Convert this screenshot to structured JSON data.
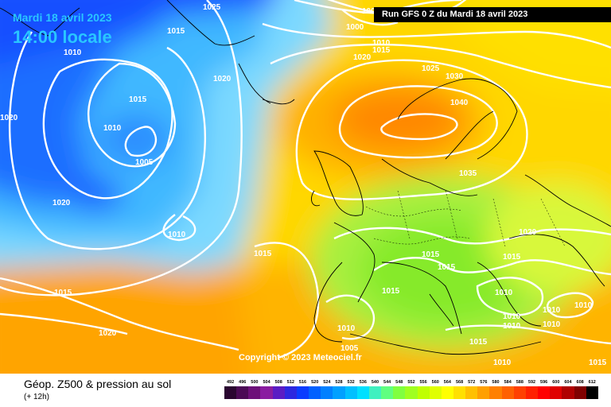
{
  "header": {
    "date": "Mardi 18 avril 2023",
    "local_time": "14:00 locale",
    "run_info": "Run GFS 0 Z du Mardi 18 avril 2023"
  },
  "copyright": "Copyright © 2023 Meteociel.fr",
  "legend": {
    "title": "Géop. Z500 & pression au sol",
    "subtitle": "(+ 12h)",
    "scale_values": [
      "492",
      "496",
      "500",
      "504",
      "508",
      "512",
      "516",
      "520",
      "524",
      "528",
      "532",
      "536",
      "540",
      "544",
      "548",
      "552",
      "556",
      "560",
      "564",
      "568",
      "572",
      "576",
      "580",
      "584",
      "588",
      "592",
      "596",
      "600",
      "604",
      "608",
      "612"
    ],
    "scale_colors": [
      "#2a0630",
      "#4b0a55",
      "#6d1079",
      "#8a1ca0",
      "#5a1cc4",
      "#2c28e0",
      "#0a3cff",
      "#0060ff",
      "#0080ff",
      "#00a0ff",
      "#00c0ff",
      "#00e0ff",
      "#40f0c0",
      "#60ff80",
      "#80ff40",
      "#a0ff20",
      "#c0ff00",
      "#e0ff00",
      "#ffff00",
      "#ffe000",
      "#ffc000",
      "#ffa000",
      "#ff8000",
      "#ff6000",
      "#ff4000",
      "#ff2000",
      "#ff0000",
      "#e00000",
      "#b00000",
      "#800000",
      "#000000"
    ]
  },
  "isobars": {
    "labels": [
      {
        "text": "1025"
      },
      {
        "text": "1015"
      },
      {
        "text": "1010"
      },
      {
        "text": "1005"
      },
      {
        "text": "1000"
      },
      {
        "text": "1010"
      },
      {
        "text": "1015"
      },
      {
        "text": "1020"
      },
      {
        "text": "1020"
      },
      {
        "text": "1025"
      },
      {
        "text": "1030"
      },
      {
        "text": "1040"
      },
      {
        "text": "1020"
      },
      {
        "text": "1015"
      },
      {
        "text": "1010"
      },
      {
        "text": "1005"
      },
      {
        "text": "1020"
      },
      {
        "text": "1010"
      },
      {
        "text": "1015"
      },
      {
        "text": "1035"
      },
      {
        "text": "1020"
      },
      {
        "text": "1015"
      },
      {
        "text": "1015"
      },
      {
        "text": "1015"
      },
      {
        "text": "1015"
      },
      {
        "text": "1010"
      },
      {
        "text": "1010"
      },
      {
        "text": "1010"
      },
      {
        "text": "1010"
      },
      {
        "text": "1010"
      },
      {
        "text": "1010"
      },
      {
        "text": "1015"
      },
      {
        "text": "1020"
      },
      {
        "text": "1015"
      },
      {
        "text": "1010"
      },
      {
        "text": "1005"
      },
      {
        "text": "1015"
      },
      {
        "text": "1010"
      }
    ]
  }
}
